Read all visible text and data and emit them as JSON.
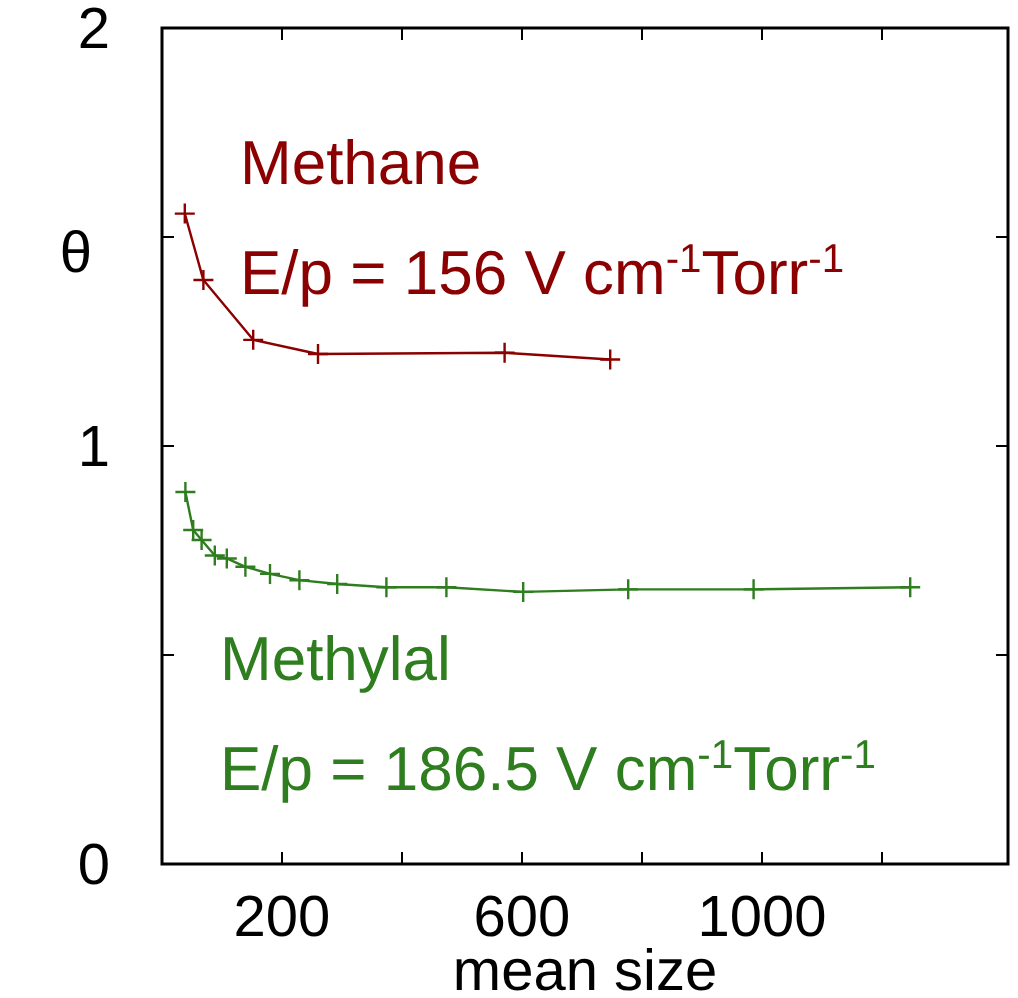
{
  "chart_data": {
    "type": "line",
    "xlabel": "mean size",
    "ylabel": "θ",
    "xlim": [
      0,
      1410
    ],
    "xticks": [
      {
        "value": 200,
        "label": "200"
      },
      {
        "value": 400,
        "label": null
      },
      {
        "value": 600,
        "label": "600"
      },
      {
        "value": 800,
        "label": null
      },
      {
        "value": 1000,
        "label": "1000"
      },
      {
        "value": 1200,
        "label": null
      }
    ],
    "ylim": [
      0,
      2
    ],
    "yticks": [
      0,
      {
        "value": 0.5,
        "label": null
      },
      1,
      {
        "value": 1.5,
        "label": null
      },
      2
    ],
    "grid": false,
    "marker": "cross",
    "line_style": "solid",
    "series": [
      {
        "name": "Methane",
        "color": "#8b0000",
        "x": [
          38,
          69,
          152,
          260,
          571,
          747
        ],
        "values": [
          1.556,
          1.397,
          1.254,
          1.22,
          1.223,
          1.207
        ]
      },
      {
        "name": "Methylal",
        "color": "#2e7d1e",
        "x": [
          39,
          52,
          66,
          88,
          108,
          139,
          180,
          229,
          292,
          374,
          474,
          602,
          777,
          986,
          1247
        ],
        "values": [
          0.89,
          0.799,
          0.775,
          0.738,
          0.731,
          0.711,
          0.694,
          0.679,
          0.67,
          0.662,
          0.662,
          0.651,
          0.657,
          0.657,
          0.662
        ]
      }
    ],
    "annotations": [
      "E/p = 156 V cm$^{-1}$Torr$^{-1}$",
      "E/p = 186.5 V cm$^{-1}$Torr$^{-1}$"
    ]
  }
}
